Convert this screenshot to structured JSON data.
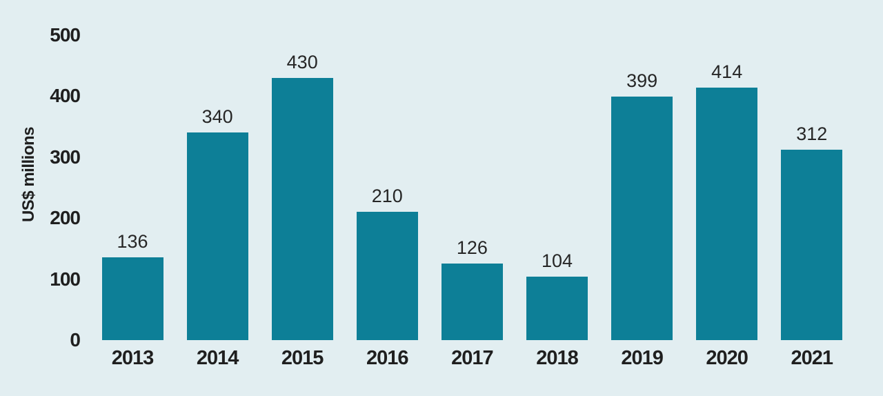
{
  "chart_data": {
    "type": "bar",
    "categories": [
      "2013",
      "2014",
      "2015",
      "2016",
      "2017",
      "2018",
      "2019",
      "2020",
      "2021"
    ],
    "values": [
      136,
      340,
      430,
      210,
      126,
      104,
      399,
      414,
      312
    ],
    "title": "",
    "xlabel": "",
    "ylabel": "US$ millions",
    "yticks": [
      0,
      100,
      200,
      300,
      400,
      500
    ],
    "ylim": [
      0,
      500
    ],
    "grid": false,
    "legend_position": "none",
    "data_labels_shown": true,
    "colors": {
      "bar": "#0d7f97",
      "background": "#e2eef1",
      "text": "#1f1f1f"
    }
  }
}
